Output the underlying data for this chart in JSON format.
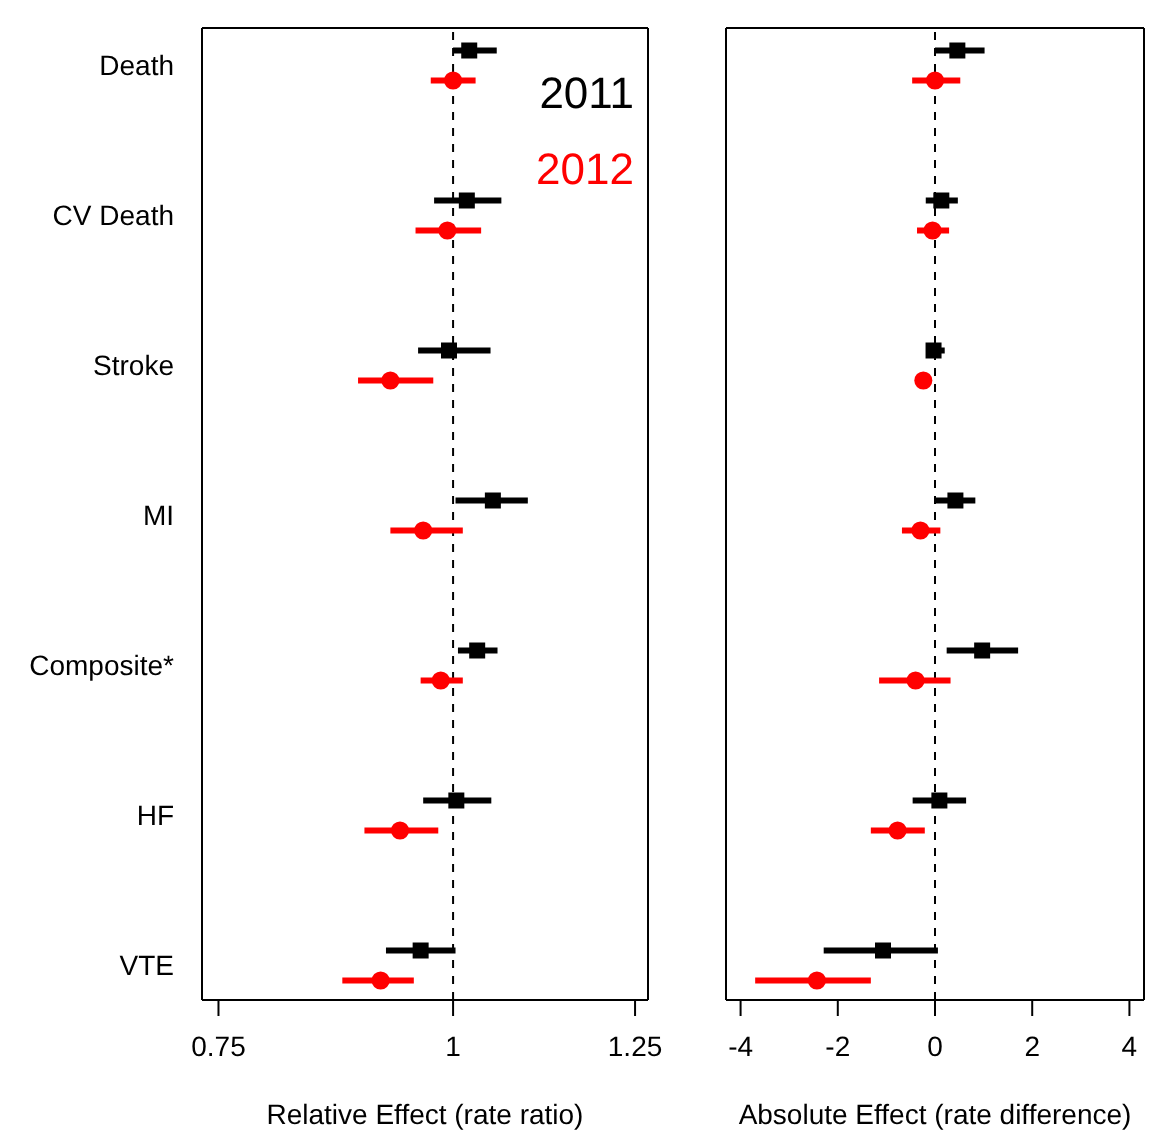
{
  "chart_data": [
    {
      "type": "scatter",
      "orientation": "horizontal",
      "xlabel": "Relative Effect (rate ratio)",
      "categories": [
        "Death",
        "CV Death",
        "Stroke",
        "MI",
        "Composite*",
        "HF",
        "VTE"
      ],
      "log": "x",
      "xlim": [
        0.735,
        1.27
      ],
      "xticks": [
        0.75,
        1,
        1.25
      ],
      "legend": "top right",
      "ref_lines": [
        {
          "axis": "x",
          "value": 1,
          "line_style": "dashed",
          "color": "#000000"
        }
      ],
      "series": [
        {
          "name": "2011",
          "color": "#000000",
          "marker": "square",
          "values": [
            1.02,
            1.017,
            0.995,
            1.05,
            1.03,
            1.004,
            0.961
          ],
          "errors": [
            [
              1.0,
              1.055
            ],
            [
              0.977,
              1.061
            ],
            [
              0.958,
              1.047
            ],
            [
              1.003,
              1.096
            ],
            [
              1.006,
              1.056
            ],
            [
              0.964,
              1.048
            ],
            [
              0.921,
              1.003
            ]
          ]
        },
        {
          "name": "2012",
          "color": "#ff0000",
          "marker": "circle",
          "values": [
            1.0,
            0.993,
            0.926,
            0.964,
            0.985,
            0.937,
            0.915
          ],
          "errors": [
            [
              0.973,
              1.028
            ],
            [
              0.955,
              1.035
            ],
            [
              0.89,
              0.976
            ],
            [
              0.926,
              1.012
            ],
            [
              0.961,
              1.012
            ],
            [
              0.897,
              0.982
            ],
            [
              0.873,
              0.953
            ]
          ]
        }
      ]
    },
    {
      "type": "scatter",
      "orientation": "horizontal",
      "xlabel": "Absolute Effect (rate difference)",
      "categories": [
        null,
        null,
        null,
        null,
        null,
        null,
        null
      ],
      "tick_labels": "x",
      "xlim": [
        -4.3,
        4.3
      ],
      "xticks": [
        -4,
        -2,
        0,
        2,
        4
      ],
      "ref_lines": [
        {
          "axis": "x",
          "value": 0,
          "line_style": "dashed",
          "color": "#000000"
        }
      ],
      "series": [
        {
          "color": "#000000",
          "marker": "square",
          "values": [
            0.46,
            0.13,
            -0.03,
            0.42,
            0.97,
            0.09,
            -1.07
          ],
          "errors": [
            [
              0.0,
              1.02
            ],
            [
              -0.19,
              0.47
            ],
            [
              -0.15,
              0.2
            ],
            [
              0.0,
              0.83
            ],
            [
              0.24,
              1.71
            ],
            [
              -0.46,
              0.64
            ],
            [
              -2.29,
              0.06
            ]
          ]
        },
        {
          "color": "#ff0000",
          "marker": "circle",
          "values": [
            0.0,
            -0.05,
            -0.24,
            -0.3,
            -0.4,
            -0.77,
            -2.43
          ],
          "errors": [
            [
              -0.47,
              0.52
            ],
            [
              -0.37,
              0.29
            ],
            [
              -0.35,
              -0.1
            ],
            [
              -0.68,
              0.11
            ],
            [
              -1.15,
              0.32
            ],
            [
              -1.32,
              -0.21
            ],
            [
              -3.7,
              -1.32
            ]
          ]
        }
      ]
    }
  ]
}
